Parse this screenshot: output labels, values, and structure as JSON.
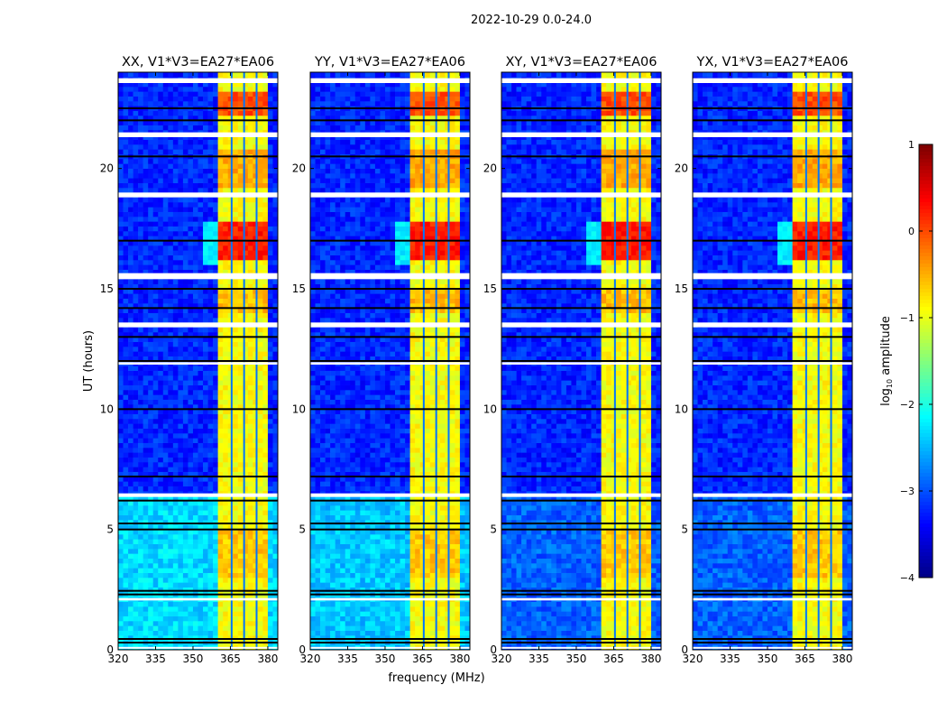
{
  "chart_data": {
    "type": "heatmap",
    "title": "2022-10-29 0.0-24.0",
    "xlabel": "frequency (MHz)",
    "ylabel": "UT (hours)",
    "xlim": [
      320,
      384
    ],
    "ylim": [
      0,
      24
    ],
    "xticks": [
      320,
      335,
      350,
      365,
      380
    ],
    "yticks": [
      0,
      5,
      10,
      15,
      20
    ],
    "colorbar": {
      "label_main": "log",
      "label_sub": "10",
      "label_rest": " amplitude",
      "range": [
        -4,
        1
      ],
      "ticks": [
        "1",
        "0",
        "−1",
        "−2",
        "−3",
        "−4"
      ],
      "tick_values": [
        1,
        0,
        -1,
        -2,
        -3,
        -4
      ],
      "colormap": "jet"
    },
    "panels": [
      {
        "title": "XX, V1*V3=EA27*EA06",
        "low_time_level": -2.3
      },
      {
        "title": "YY, V1*V3=EA27*EA06",
        "low_time_level": -2.4
      },
      {
        "title": "XY, V1*V3=EA27*EA06",
        "low_time_level": -2.9
      },
      {
        "title": "YX, V1*V3=EA27*EA06",
        "low_time_level": -2.9
      }
    ],
    "background_level": -3.2,
    "rfi_band_mhz": [
      360.5,
      380.5
    ],
    "rfi_level": -0.9,
    "rfi_gap_columns_mhz": [
      365.5,
      370.5,
      375.5
    ],
    "bright_intervals_hours": [
      [
        16.0,
        17.6,
        0.25
      ],
      [
        22.0,
        23.0,
        0.0
      ],
      [
        19.0,
        20.6,
        -0.45
      ],
      [
        13.8,
        14.8,
        -0.55
      ],
      [
        3.0,
        5.0,
        -0.6
      ]
    ],
    "flagged_white_hours": [
      [
        23.55,
        23.75
      ],
      [
        21.3,
        21.5
      ],
      [
        18.8,
        19.0
      ],
      [
        15.4,
        15.65
      ],
      [
        13.4,
        13.6
      ],
      [
        11.85,
        11.95
      ],
      [
        6.35,
        6.5
      ],
      [
        2.05,
        2.15
      ],
      [
        0.05,
        0.12
      ]
    ],
    "flagged_black_hours": [
      0.3,
      0.45,
      2.3,
      2.45,
      5.0,
      5.25,
      6.2,
      7.2,
      10.0,
      12.0,
      13.0,
      14.2,
      15.0,
      17.0,
      20.5,
      22.0,
      22.5
    ]
  }
}
